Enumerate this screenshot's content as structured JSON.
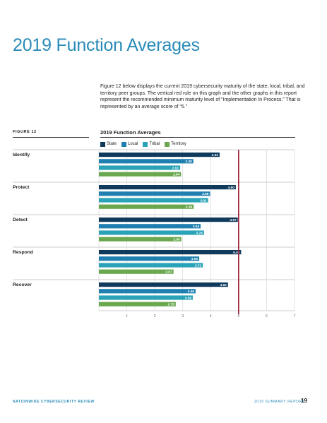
{
  "page": {
    "title": "2019 Function Averages",
    "intro": "Figure 12 below displays the current 2019 cybersecurity maturity of the state, local, tribal, and territory peer groups. The vertical red rule on this graph and the other graphs in this report represent the recommended minimum maturity level of “Implementation In Process.” That is represented by an average score of “5.”",
    "figure_label": "FIGURE 12"
  },
  "footer": {
    "left": "NATIONWIDE CYBERSECURITY REVIEW",
    "right": "2019 SUMMARY REPORT",
    "page_number": "19"
  },
  "chart_data": {
    "type": "bar",
    "orientation": "horizontal",
    "title": "2019 Function Averages",
    "categories": [
      "Identify",
      "Protect",
      "Detect",
      "Respond",
      "Recover"
    ],
    "series": [
      {
        "name": "State",
        "color": "#0f3a5c",
        "values": [
          4.32,
          4.9,
          4.97,
          5.09,
          4.62
        ]
      },
      {
        "name": "Local",
        "color": "#1f7fb0",
        "values": [
          3.38,
          3.98,
          3.64,
          3.59,
          3.46
        ]
      },
      {
        "name": "Tribal",
        "color": "#2aa3b8",
        "values": [
          2.91,
          3.91,
          3.76,
          3.72,
          3.36
        ]
      },
      {
        "name": "Territory",
        "color": "#6aa84f",
        "values": [
          2.94,
          3.39,
          2.95,
          2.67,
          2.75
        ]
      }
    ],
    "value_labels": [
      [
        "4.32",
        "3.38",
        "2.91",
        "2.94"
      ],
      [
        "4.90",
        "3.98",
        "3.91",
        "3.39"
      ],
      [
        "4.97",
        "3.64",
        "3.76",
        "2.95"
      ],
      [
        "5.09",
        "3.59",
        "3.72",
        "2.67"
      ],
      [
        "4.62",
        "3.46",
        "3.36",
        "2.75"
      ]
    ],
    "xlim": [
      0,
      7
    ],
    "xticks": [
      "1",
      "2",
      "3",
      "4",
      "5",
      "6",
      "7"
    ],
    "reference_line": {
      "value": 5,
      "color": "#9b1b30"
    },
    "grid": true,
    "legend_position": "top-left"
  }
}
